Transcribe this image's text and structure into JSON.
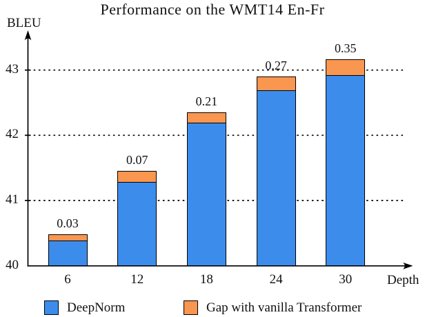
{
  "chart_data": {
    "type": "bar",
    "stacked": true,
    "title": "Performance on the WMT14 En-Fr",
    "ylabel": "BLEU",
    "xlabel": "Depth",
    "categories": [
      "6",
      "12",
      "18",
      "24",
      "30"
    ],
    "series": [
      {
        "name": "DeepNorm",
        "color": "#3C8CEC",
        "values": [
          40.4,
          41.3,
          42.2,
          42.7,
          42.93
        ]
      },
      {
        "name": "Gap with vanilla Transformer",
        "color": "#F9964F",
        "values": [
          0.03,
          0.07,
          0.21,
          0.27,
          0.35
        ]
      }
    ],
    "bar_value_labels": [
      "0.03",
      "0.07",
      "0.21",
      "0.27",
      "0.35"
    ],
    "stack_top_visual": [
      40.48,
      41.45,
      42.35,
      42.9,
      43.17
    ],
    "y_ticks": [
      "40",
      "41",
      "42",
      "43"
    ],
    "y_tick_values": [
      40,
      41,
      42,
      43
    ],
    "grid_values": [
      41,
      42,
      43
    ],
    "ylim": [
      40,
      43.6
    ],
    "grid": "dotted-horizontal",
    "legend_position": "bottom",
    "axis_color": "#000000"
  }
}
